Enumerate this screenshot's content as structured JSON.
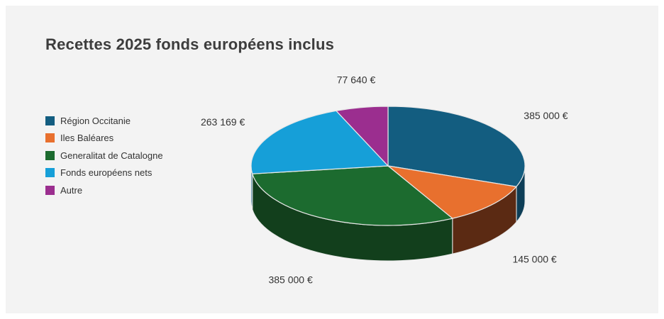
{
  "chart_data": {
    "type": "pie",
    "title": "Recettes 2025 fonds européens inclus",
    "three_d": true,
    "legend_placement": "left",
    "slices": [
      {
        "name": "Région Occitanie",
        "value": 385000,
        "label": "385 000 €",
        "color": "#135d80",
        "side_color": "#0d3e57"
      },
      {
        "name": "Iles Baléares",
        "value": 145000,
        "label": "145 000 €",
        "color": "#e8702e",
        "side_color": "#5b2a13"
      },
      {
        "name": "Generalitat de Catalogne",
        "value": 385000,
        "label": "385 000 €",
        "color": "#1c6b2f",
        "side_color": "#123f1c"
      },
      {
        "name": "Fonds européens nets",
        "value": 263169,
        "label": "263 169 €",
        "color": "#169fd8",
        "side_color": "#0c5c80"
      },
      {
        "name": "Autre",
        "value": 77640,
        "label": "77 640 €",
        "color": "#9b2e8f",
        "side_color": "#5a1a53"
      }
    ]
  }
}
